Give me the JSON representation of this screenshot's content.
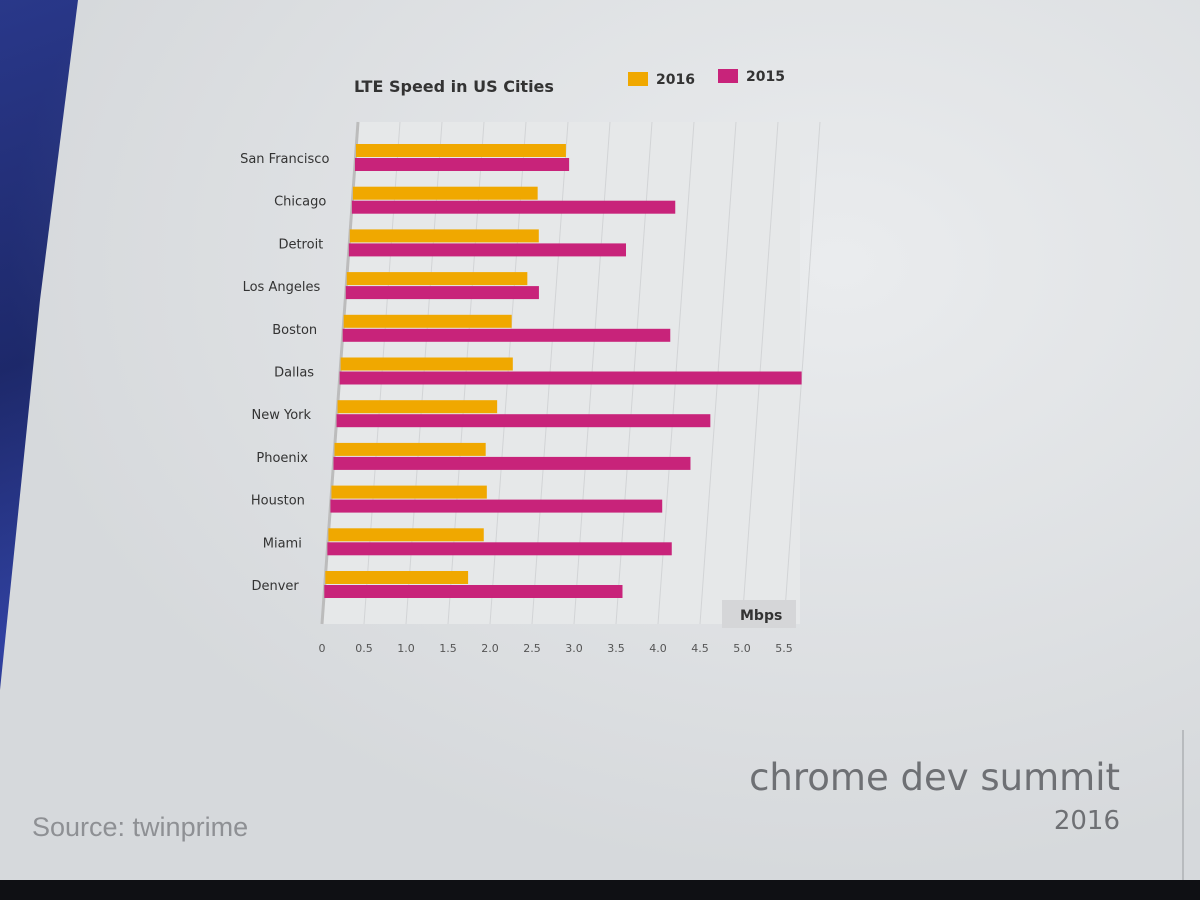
{
  "slide": {
    "source": "Source: twinprime",
    "brand_name": "chrome dev summit",
    "brand_year": "2016",
    "watermark": "twinprime"
  },
  "chart_data": {
    "type": "bar",
    "orientation": "horizontal",
    "title": "LTE Speed in US Cities",
    "xlabel": "Mbps",
    "xlim": [
      0,
      5.5
    ],
    "x_ticks": [
      "0",
      "0.5",
      "1.0",
      "1.5",
      "2.0",
      "2.5",
      "3.0",
      "3.5",
      "4.0",
      "4.5",
      "5.0",
      "5.5"
    ],
    "grid": true,
    "legend_position": "top-right",
    "categories": [
      "San Francisco",
      "Chicago",
      "Detroit",
      "Los Angeles",
      "Boston",
      "Dallas",
      "New York",
      "Phoenix",
      "Houston",
      "Miami",
      "Denver"
    ],
    "series": [
      {
        "name": "2016",
        "color": "#f0a800",
        "values": [
          2.5,
          2.2,
          2.25,
          2.15,
          2.0,
          2.05,
          1.9,
          1.8,
          1.85,
          1.85,
          1.7
        ]
      },
      {
        "name": "2015",
        "color": "#c8237a",
        "values": [
          2.55,
          3.85,
          3.3,
          2.3,
          3.9,
          5.5,
          4.45,
          4.25,
          3.95,
          4.1,
          3.55
        ]
      }
    ]
  }
}
